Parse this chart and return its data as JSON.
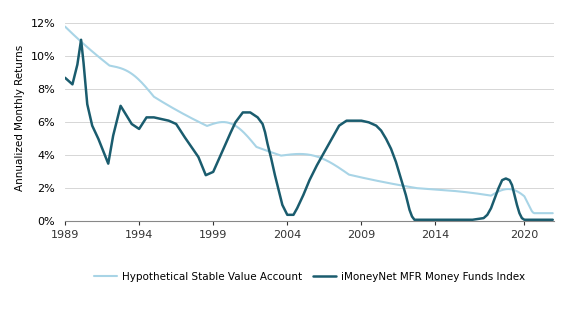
{
  "title": "",
  "ylabel": "Annualized Monthly Returns",
  "xlabel": "",
  "ylim": [
    0,
    0.125
  ],
  "yticks": [
    0,
    0.02,
    0.04,
    0.06,
    0.08,
    0.1,
    0.12
  ],
  "ytick_labels": [
    "0%",
    "2%",
    "4%",
    "6%",
    "8%",
    "10%",
    "12%"
  ],
  "xticks": [
    1989,
    1994,
    1999,
    2004,
    2009,
    2014,
    2020
  ],
  "stable_color": "#a8d4e6",
  "money_color": "#1a5c6e",
  "stable_linewidth": 1.5,
  "money_linewidth": 1.8,
  "legend_stable": "Hypothetical Stable Value Account",
  "legend_money": "iMoneyNet MFR Money Funds Index",
  "background_color": "#ffffff",
  "grid_color": "#d0d0d0",
  "xlim_start": 1989,
  "xlim_end": 2022,
  "start_year": 1989,
  "n_months": 396
}
